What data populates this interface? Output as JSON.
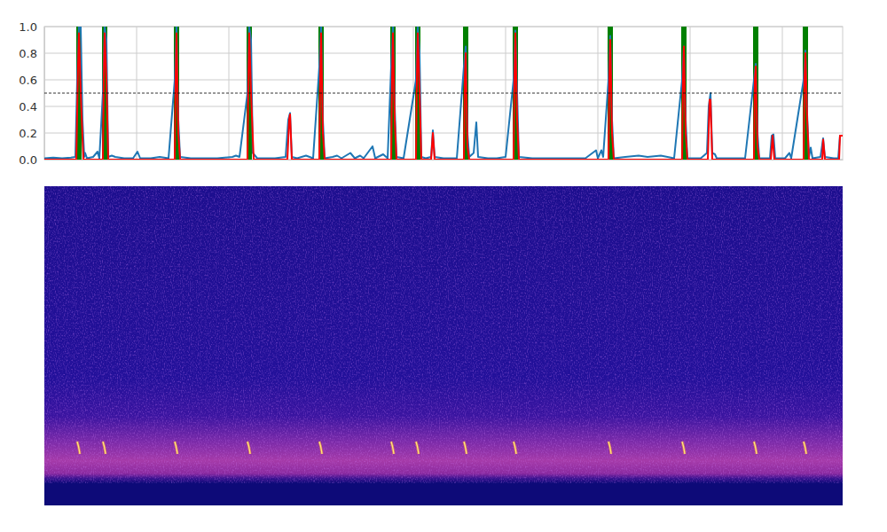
{
  "chart_data": {
    "type": "line",
    "xlim": [
      0,
      900
    ],
    "xticks": [
      0,
      104,
      208,
      312,
      416,
      520,
      624,
      728,
      832
    ],
    "ylim": [
      0,
      1
    ],
    "yticks": [
      {
        "value": 0,
        "label": "0.0"
      },
      {
        "value": 0.2,
        "label": "0.2"
      },
      {
        "value": 0.4,
        "label": "0.4"
      },
      {
        "value": 0.6,
        "label": "0.6"
      },
      {
        "value": 0.8,
        "label": "0.8"
      },
      {
        "value": 1,
        "label": "1.0"
      }
    ],
    "grid": true,
    "tick_labels": "y",
    "series": [
      {
        "type": "span",
        "color": "#008000",
        "x": [
          36,
          65,
          146,
          228,
          309,
          390,
          418,
          472,
          528,
          635,
          718,
          799,
          855
        ],
        "x_end": [
          42,
          71,
          152,
          234,
          315,
          396,
          424,
          478,
          534,
          641,
          724,
          805,
          861
        ],
        "values": [
          1,
          1,
          1,
          1,
          1,
          1,
          1,
          1,
          1,
          1,
          1,
          1,
          1
        ]
      },
      {
        "type": "line",
        "color": "#1f77b4",
        "x": [
          0,
          10,
          20,
          30,
          35,
          37,
          39,
          41,
          43,
          45,
          46,
          48,
          55,
          60,
          62,
          66,
          68,
          70,
          72,
          76,
          80,
          90,
          100,
          105,
          108,
          120,
          130,
          140,
          147,
          149,
          151,
          153,
          165,
          180,
          195,
          212,
          216,
          220,
          229,
          231,
          233,
          235,
          240,
          260,
          272,
          275,
          277,
          279,
          285,
          295,
          303,
          310,
          312,
          314,
          316,
          325,
          330,
          335,
          345,
          350,
          356,
          360,
          370,
          373,
          382,
          387,
          391,
          393,
          395,
          397,
          405,
          419,
          421,
          423,
          425,
          430,
          436,
          438,
          440,
          450,
          465,
          473,
          475,
          477,
          479,
          484,
          487,
          489,
          500,
          510,
          520,
          529,
          531,
          533,
          535,
          550,
          570,
          590,
          610,
          622,
          624,
          628,
          630,
          636,
          638,
          640,
          642,
          655,
          670,
          680,
          695,
          710,
          719,
          721,
          723,
          725,
          740,
          747,
          749,
          751,
          753,
          756,
          758,
          770,
          780,
          790,
          800,
          802,
          804,
          806,
          818,
          820,
          822,
          824,
          835,
          840,
          842,
          856,
          858,
          860,
          862,
          864,
          866,
          875,
          878,
          880,
          890,
          895,
          897,
          900
        ],
        "values": [
          0.01,
          0.015,
          0.01,
          0.015,
          0.02,
          0.6,
          1.0,
          1.0,
          0.3,
          0.02,
          0.05,
          0.01,
          0.02,
          0.06,
          0.01,
          0.5,
          1.0,
          0.9,
          0.02,
          0.03,
          0.02,
          0.01,
          0.01,
          0.06,
          0.01,
          0.01,
          0.02,
          0.01,
          0.6,
          1.0,
          0.3,
          0.02,
          0.01,
          0.01,
          0.01,
          0.02,
          0.03,
          0.02,
          0.5,
          1.0,
          0.9,
          0.05,
          0.01,
          0.01,
          0.02,
          0.3,
          0.35,
          0.02,
          0.01,
          0.03,
          0.01,
          0.7,
          1.0,
          0.3,
          0.01,
          0.02,
          0.03,
          0.01,
          0.05,
          0.01,
          0.03,
          0.01,
          0.1,
          0.01,
          0.04,
          0.01,
          0.7,
          1.0,
          0.4,
          0.02,
          0.01,
          0.6,
          1.0,
          0.8,
          0.02,
          0.01,
          0.02,
          0.22,
          0.02,
          0.01,
          0.01,
          0.7,
          0.85,
          0.2,
          0.02,
          0.05,
          0.28,
          0.02,
          0.01,
          0.01,
          0.02,
          0.6,
          0.97,
          0.5,
          0.02,
          0.01,
          0.01,
          0.01,
          0.01,
          0.07,
          0.01,
          0.07,
          0.02,
          0.6,
          0.93,
          0.3,
          0.01,
          0.02,
          0.03,
          0.02,
          0.03,
          0.01,
          0.6,
          0.85,
          0.3,
          0.01,
          0.01,
          0.05,
          0.4,
          0.5,
          0.05,
          0.04,
          0.01,
          0.01,
          0.01,
          0.01,
          0.6,
          0.72,
          0.2,
          0.01,
          0.01,
          0.18,
          0.19,
          0.01,
          0.01,
          0.05,
          0.01,
          0.6,
          0.82,
          0.34,
          0.02,
          0.09,
          0.01,
          0.02,
          0.16,
          0.02,
          0.01,
          0.01,
          0.18,
          0.18
        ]
      },
      {
        "type": "line",
        "color": "#ff0000",
        "x": [
          0,
          36,
          38,
          39,
          41,
          44,
          66,
          67,
          68,
          70,
          72,
          147,
          148,
          149,
          151,
          153,
          229,
          230,
          231,
          233,
          236,
          274,
          276,
          277,
          279,
          310,
          311,
          312,
          314,
          316,
          391,
          392,
          393,
          395,
          397,
          419,
          420,
          421,
          423,
          425,
          436,
          438,
          440,
          473,
          474,
          475,
          477,
          479,
          529,
          530,
          531,
          533,
          535,
          636,
          637,
          638,
          640,
          642,
          719,
          720,
          721,
          723,
          725,
          748,
          750,
          751,
          753,
          800,
          801,
          802,
          804,
          806,
          819,
          821,
          823,
          856,
          857,
          858,
          860,
          862,
          877,
          878,
          880,
          896,
          897,
          900
        ],
        "values": [
          0,
          0,
          0.7,
          0.95,
          0.5,
          0,
          0,
          0.6,
          0.95,
          0.6,
          0,
          0,
          0.6,
          0.95,
          0.2,
          0,
          0,
          0.6,
          0.95,
          0.5,
          0,
          0,
          0.3,
          0.34,
          0,
          0,
          0.6,
          0.95,
          0.2,
          0,
          0,
          0.6,
          0.95,
          0.3,
          0,
          0,
          0.6,
          0.95,
          0.5,
          0,
          0,
          0.2,
          0,
          0,
          0.6,
          0.8,
          0.1,
          0,
          0,
          0.6,
          0.95,
          0.3,
          0,
          0,
          0.6,
          0.9,
          0.2,
          0,
          0,
          0.6,
          0.85,
          0.2,
          0,
          0,
          0.45,
          0.45,
          0,
          0,
          0.6,
          0.7,
          0.1,
          0,
          0,
          0.18,
          0,
          0,
          0.6,
          0.8,
          0.3,
          0,
          0,
          0.15,
          0,
          0,
          0.18,
          0.18
        ]
      },
      {
        "type": "hline",
        "color": "#000000",
        "line_style": "dashed",
        "values": [
          0.5
        ]
      }
    ]
  }
}
